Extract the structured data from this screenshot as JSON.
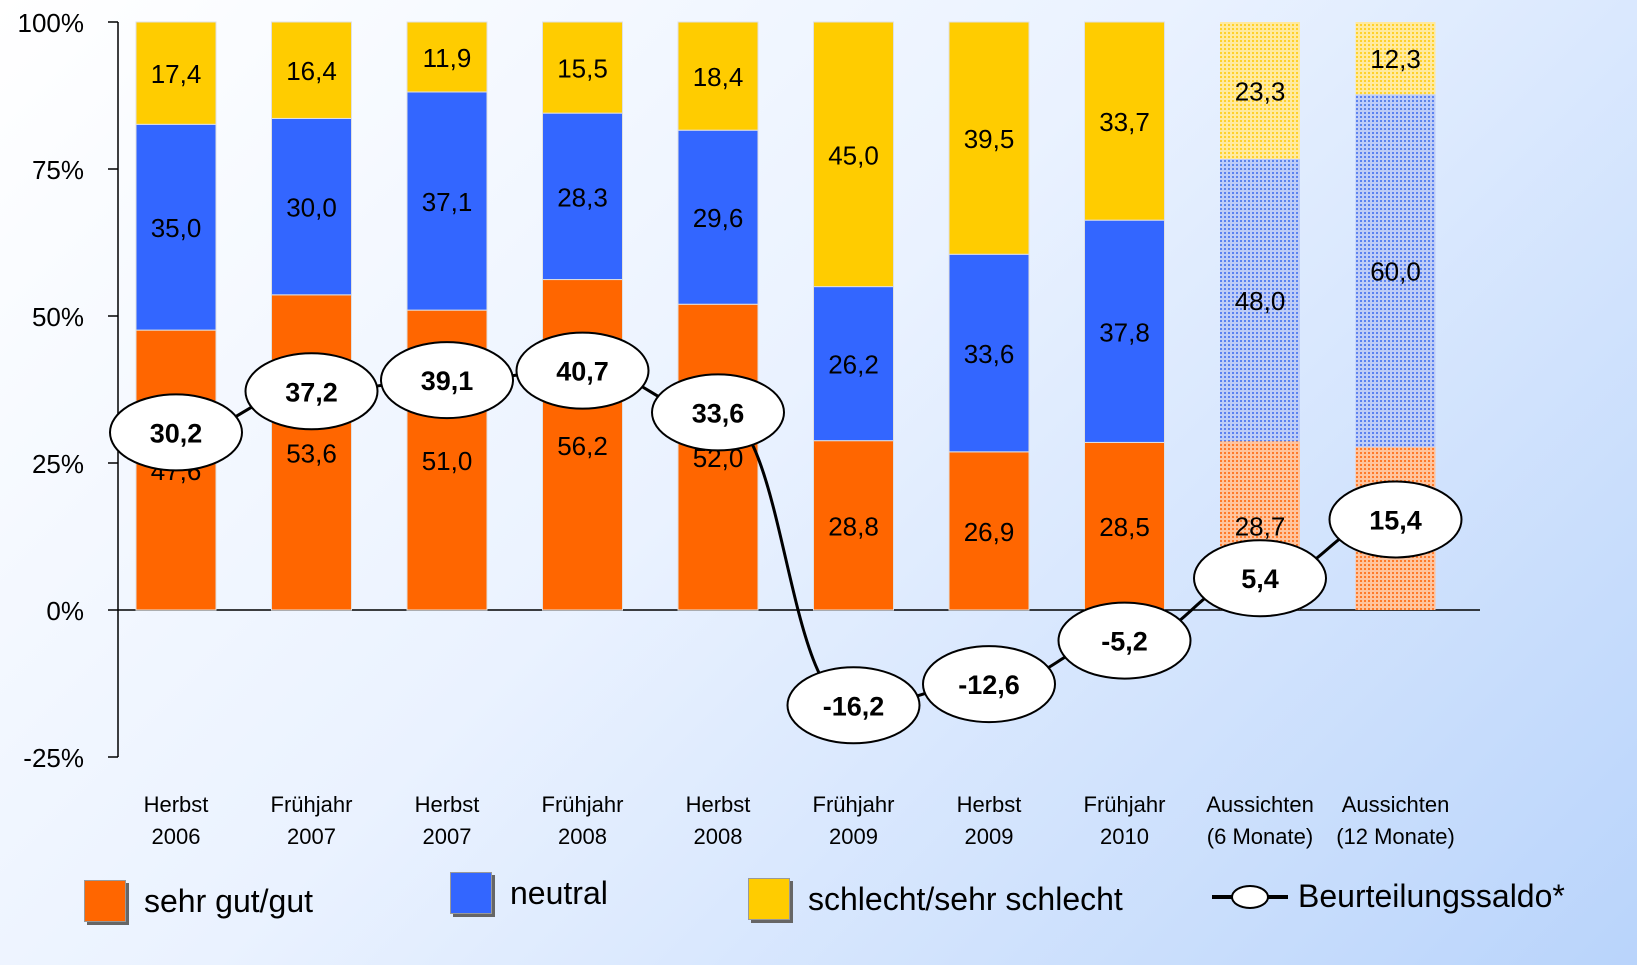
{
  "chart_data": {
    "type": "bar",
    "stacked": true,
    "ylim": [
      -25,
      100
    ],
    "yticks": [
      "100%",
      "75%",
      "50%",
      "25%",
      "0%",
      "-25%"
    ],
    "yticks_values": [
      100,
      75,
      50,
      25,
      0,
      -25
    ],
    "categories": [
      [
        "Herbst",
        "2006"
      ],
      [
        "Frühjahr",
        "2007"
      ],
      [
        "Herbst",
        "2007"
      ],
      [
        "Frühjahr",
        "2008"
      ],
      [
        "Herbst",
        "2008"
      ],
      [
        "Frühjahr",
        "2009"
      ],
      [
        "Herbst",
        "2009"
      ],
      [
        "Frühjahr",
        "2010"
      ],
      [
        "Aussichten",
        "(6 Monate)"
      ],
      [
        "Aussichten",
        "(12 Monate)"
      ]
    ],
    "series": [
      {
        "name": "sehr gut/gut",
        "color": "#ff6600",
        "values": [
          47.6,
          53.6,
          51.0,
          56.2,
          52.0,
          28.8,
          26.9,
          28.5,
          28.7,
          27.7
        ],
        "labels": [
          "47,6",
          "53,6",
          "51,0",
          "56,2",
          "52,0",
          "28,8",
          "26,9",
          "28,5",
          "28,7",
          "27,7"
        ]
      },
      {
        "name": "neutral",
        "color": "#3366ff",
        "values": [
          35.0,
          30.0,
          37.1,
          28.3,
          29.6,
          26.2,
          33.6,
          37.8,
          48.0,
          60.0
        ],
        "labels": [
          "35,0",
          "30,0",
          "37,1",
          "28,3",
          "29,6",
          "26,2",
          "33,6",
          "37,8",
          "48,0",
          "60,0"
        ]
      },
      {
        "name": "schlecht/sehr schlecht",
        "color": "#ffcc00",
        "values": [
          17.4,
          16.4,
          11.9,
          15.5,
          18.4,
          45.0,
          39.5,
          33.7,
          23.3,
          12.3
        ],
        "labels": [
          "17,4",
          "16,4",
          "11,9",
          "15,5",
          "18,4",
          "45,0",
          "39,5",
          "33,7",
          "23,3",
          "12,3"
        ]
      }
    ],
    "line": {
      "name": "Beurteilungssaldo*",
      "values": [
        30.2,
        37.2,
        39.1,
        40.7,
        33.6,
        -16.2,
        -12.6,
        -5.2,
        5.4,
        15.4
      ],
      "labels": [
        "30,2",
        "37,2",
        "39,1",
        "40,7",
        "33,6",
        "-16,2",
        "-12,6",
        "-5,2",
        "5,4",
        "15,4"
      ]
    },
    "hatched_categories": [
      8,
      9
    ]
  },
  "legend": {
    "item1": "sehr gut/gut",
    "item2": "neutral",
    "item3": "schlecht/sehr schlecht",
    "item4": "Beurteilungssaldo*"
  }
}
